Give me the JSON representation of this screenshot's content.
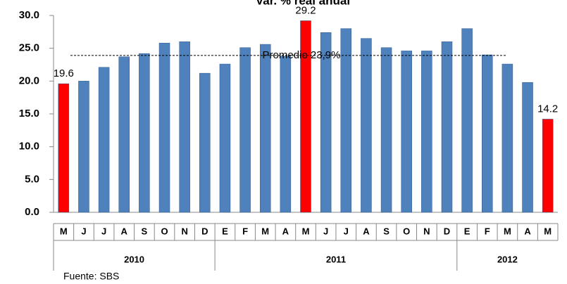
{
  "chart_data": {
    "type": "bar",
    "title": "Var. % real anual",
    "categories": [
      "M",
      "J",
      "J",
      "A",
      "S",
      "O",
      "N",
      "D",
      "E",
      "F",
      "M",
      "A",
      "M",
      "J",
      "J",
      "A",
      "S",
      "O",
      "N",
      "D",
      "E",
      "F",
      "M",
      "A",
      "M"
    ],
    "year_groups": [
      {
        "label": "2010",
        "size": 8
      },
      {
        "label": "2011",
        "size": 12
      },
      {
        "label": "2012",
        "size": 5
      }
    ],
    "values": [
      19.6,
      20.0,
      22.1,
      23.7,
      24.2,
      25.8,
      26.0,
      21.2,
      22.6,
      25.1,
      25.6,
      23.8,
      29.2,
      27.4,
      28.0,
      26.5,
      25.1,
      24.6,
      24.6,
      26.0,
      28.0,
      24.0,
      22.6,
      19.8,
      14.2
    ],
    "value_labels": [
      "19.6",
      null,
      null,
      null,
      null,
      null,
      null,
      null,
      null,
      null,
      null,
      null,
      "29.2",
      null,
      null,
      null,
      null,
      null,
      null,
      null,
      null,
      null,
      null,
      null,
      "14.2"
    ],
    "colors": [
      "#ff0000",
      "#4f81bd",
      "#4f81bd",
      "#4f81bd",
      "#4f81bd",
      "#4f81bd",
      "#4f81bd",
      "#4f81bd",
      "#4f81bd",
      "#4f81bd",
      "#4f81bd",
      "#4f81bd",
      "#ff0000",
      "#4f81bd",
      "#4f81bd",
      "#4f81bd",
      "#4f81bd",
      "#4f81bd",
      "#4f81bd",
      "#4f81bd",
      "#4f81bd",
      "#4f81bd",
      "#4f81bd",
      "#4f81bd",
      "#ff0000"
    ],
    "average": 23.9,
    "average_label": "Promedio 23,9%",
    "ylim": [
      0,
      30
    ],
    "yticks": [
      {
        "value": 0,
        "label": "0.0"
      },
      {
        "value": 5,
        "label": "5.0"
      },
      {
        "value": 10,
        "label": "10.0"
      },
      {
        "value": 15,
        "label": "15.0"
      },
      {
        "value": 20,
        "label": "20.0"
      },
      {
        "value": 25,
        "label": "25.0"
      },
      {
        "value": 30,
        "label": "30.0"
      }
    ],
    "source": "Fuente: SBS"
  }
}
